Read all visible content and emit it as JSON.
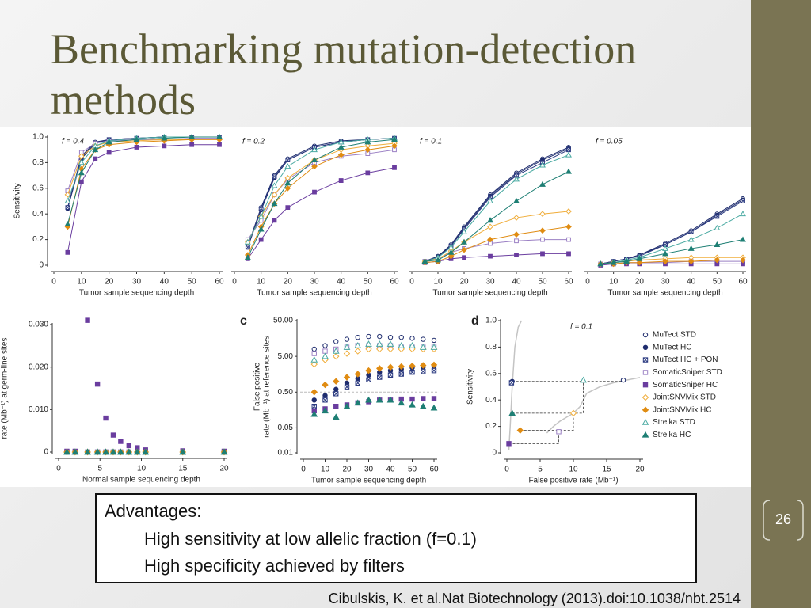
{
  "slide": {
    "title": "Benchmarking mutation-detection methods",
    "textbox": {
      "heading": "Advantages:",
      "lines": [
        "High sensitivity at low allelic fraction (f=0.1)",
        "High specificity achieved by filters"
      ]
    },
    "citation": "Cibulskis, K. et al.Nat Biotechnology (2013).doi:10.1038/nbt.2514",
    "page_number": 26
  },
  "series_styles": [
    {
      "name": "MuTect STD",
      "color": "#1f2d6e",
      "marker": "circle",
      "filled": false
    },
    {
      "name": "MuTect HC",
      "color": "#1f2d6e",
      "marker": "circle",
      "filled": true
    },
    {
      "name": "MuTect HC + PON",
      "color": "#2b3a80",
      "marker": "xsquare",
      "filled": false
    },
    {
      "name": "SomaticSniper STD",
      "color": "#9b80c4",
      "marker": "square",
      "filled": false
    },
    {
      "name": "SomaticSniper HC",
      "color": "#6a3d9f",
      "marker": "square",
      "filled": true
    },
    {
      "name": "JointSNVMix STD",
      "color": "#f0ad3a",
      "marker": "diamond",
      "filled": false
    },
    {
      "name": "JointSNVMix HC",
      "color": "#e08c12",
      "marker": "diamond",
      "filled": true
    },
    {
      "name": "Strelka STD",
      "color": "#4aaaa2",
      "marker": "triangle",
      "filled": false
    },
    {
      "name": "Strelka HC",
      "color": "#1e7f74",
      "marker": "triangle",
      "filled": true
    }
  ],
  "chart_data": [
    {
      "type": "line",
      "annotation": "f = 0.4",
      "xlabel": "Tumor sample sequencing depth",
      "ylabel": "Sensitivity",
      "x": [
        5,
        10,
        15,
        20,
        30,
        40,
        50,
        60
      ],
      "xlim": [
        0,
        60
      ],
      "ylim": [
        0,
        1
      ],
      "xticks": [
        0,
        10,
        20,
        30,
        40,
        50,
        60
      ],
      "yticks": [
        0,
        0.2,
        0.4,
        0.6,
        0.8,
        {
          "value": 1,
          "label": "1.0"
        }
      ],
      "series": [
        {
          "values": [
            0.45,
            0.85,
            0.96,
            0.98,
            0.99,
            1,
            1,
            1
          ]
        },
        {
          "values": [
            0.44,
            0.83,
            0.95,
            0.98,
            0.99,
            1,
            1,
            1
          ]
        },
        {
          "values": [
            0.45,
            0.84,
            0.95,
            0.98,
            0.99,
            1,
            1,
            1
          ]
        },
        {
          "values": [
            0.58,
            0.88,
            0.95,
            0.97,
            0.98,
            0.98,
            0.99,
            0.99
          ]
        },
        {
          "values": [
            0.1,
            0.65,
            0.83,
            0.88,
            0.92,
            0.93,
            0.94,
            0.94
          ]
        },
        {
          "values": [
            0.55,
            0.85,
            0.93,
            0.96,
            0.97,
            0.98,
            0.98,
            0.98
          ]
        },
        {
          "values": [
            0.3,
            0.75,
            0.9,
            0.94,
            0.96,
            0.97,
            0.98,
            0.98
          ]
        },
        {
          "values": [
            0.5,
            0.8,
            0.93,
            0.97,
            0.99,
            1,
            1,
            1
          ]
        },
        {
          "values": [
            0.32,
            0.72,
            0.9,
            0.96,
            0.98,
            0.99,
            1,
            1
          ]
        }
      ]
    },
    {
      "type": "line",
      "annotation": "f = 0.2",
      "xlabel": "Tumor sample sequencing depth",
      "x": [
        5,
        10,
        15,
        20,
        30,
        40,
        50,
        60
      ],
      "xlim": [
        0,
        60
      ],
      "ylim": [
        0,
        1
      ],
      "xticks": [
        0,
        10,
        20,
        30,
        40,
        50,
        60
      ],
      "series": [
        {
          "values": [
            0.15,
            0.45,
            0.7,
            0.83,
            0.93,
            0.97,
            0.98,
            0.99
          ]
        },
        {
          "values": [
            0.14,
            0.43,
            0.68,
            0.82,
            0.92,
            0.96,
            0.98,
            0.99
          ]
        },
        {
          "values": [
            0.14,
            0.44,
            0.69,
            0.82,
            0.92,
            0.96,
            0.98,
            0.99
          ]
        },
        {
          "values": [
            0.2,
            0.35,
            0.55,
            0.67,
            0.8,
            0.85,
            0.87,
            0.9
          ]
        },
        {
          "values": [
            0.05,
            0.2,
            0.35,
            0.45,
            0.57,
            0.66,
            0.72,
            0.76
          ]
        },
        {
          "values": [
            0.18,
            0.38,
            0.55,
            0.68,
            0.82,
            0.9,
            0.93,
            0.95
          ]
        },
        {
          "values": [
            0.08,
            0.3,
            0.48,
            0.6,
            0.77,
            0.86,
            0.9,
            0.93
          ]
        },
        {
          "values": [
            0.18,
            0.38,
            0.62,
            0.77,
            0.9,
            0.96,
            0.98,
            0.99
          ]
        },
        {
          "values": [
            0.06,
            0.28,
            0.48,
            0.64,
            0.82,
            0.92,
            0.96,
            0.98
          ]
        }
      ]
    },
    {
      "type": "line",
      "annotation": "f = 0.1",
      "xlabel": "Tumor sample sequencing depth",
      "x": [
        5,
        10,
        15,
        20,
        30,
        40,
        50,
        60
      ],
      "xlim": [
        0,
        60
      ],
      "ylim": [
        0,
        1
      ],
      "xticks": [
        0,
        10,
        20,
        30,
        40,
        50,
        60
      ],
      "series": [
        {
          "values": [
            0.03,
            0.07,
            0.16,
            0.3,
            0.55,
            0.72,
            0.83,
            0.92
          ]
        },
        {
          "values": [
            0.03,
            0.07,
            0.15,
            0.29,
            0.54,
            0.71,
            0.82,
            0.91
          ]
        },
        {
          "values": [
            0.03,
            0.06,
            0.15,
            0.28,
            0.53,
            0.7,
            0.8,
            0.9
          ]
        },
        {
          "values": [
            0.03,
            0.05,
            0.1,
            0.13,
            0.17,
            0.19,
            0.2,
            0.2
          ]
        },
        {
          "values": [
            0.02,
            0.03,
            0.05,
            0.06,
            0.07,
            0.08,
            0.09,
            0.09
          ]
        },
        {
          "values": [
            0.03,
            0.05,
            0.11,
            0.18,
            0.3,
            0.37,
            0.4,
            0.42
          ]
        },
        {
          "values": [
            0.02,
            0.03,
            0.07,
            0.12,
            0.2,
            0.24,
            0.27,
            0.3
          ]
        },
        {
          "values": [
            0.03,
            0.06,
            0.14,
            0.26,
            0.5,
            0.67,
            0.78,
            0.86
          ]
        },
        {
          "values": [
            0.03,
            0.04,
            0.1,
            0.18,
            0.35,
            0.5,
            0.63,
            0.73
          ]
        }
      ]
    },
    {
      "type": "line",
      "annotation": "f = 0.05",
      "xlabel": "Tumor sample sequencing depth",
      "x": [
        5,
        10,
        15,
        20,
        30,
        40,
        50,
        60
      ],
      "xlim": [
        0,
        60
      ],
      "ylim": [
        0,
        1
      ],
      "xticks": [
        0,
        10,
        20,
        30,
        40,
        50,
        60
      ],
      "series": [
        {
          "values": [
            0.01,
            0.03,
            0.05,
            0.08,
            0.17,
            0.27,
            0.4,
            0.52
          ]
        },
        {
          "values": [
            0.01,
            0.03,
            0.05,
            0.08,
            0.16,
            0.26,
            0.39,
            0.51
          ]
        },
        {
          "values": [
            0.01,
            0.03,
            0.05,
            0.07,
            0.16,
            0.26,
            0.38,
            0.5
          ]
        },
        {
          "values": [
            0.01,
            0.01,
            0.02,
            0.02,
            0.02,
            0.03,
            0.03,
            0.03
          ]
        },
        {
          "values": [
            0,
            0.01,
            0.01,
            0.01,
            0.01,
            0.01,
            0.01,
            0.01
          ]
        },
        {
          "values": [
            0.01,
            0.02,
            0.03,
            0.04,
            0.05,
            0.06,
            0.06,
            0.06
          ]
        },
        {
          "values": [
            0.01,
            0.01,
            0.02,
            0.02,
            0.03,
            0.03,
            0.04,
            0.04
          ]
        },
        {
          "values": [
            0.01,
            0.02,
            0.04,
            0.06,
            0.13,
            0.2,
            0.29,
            0.4
          ]
        },
        {
          "values": [
            0.01,
            0.02,
            0.03,
            0.05,
            0.09,
            0.13,
            0.16,
            0.2
          ]
        }
      ]
    },
    {
      "type": "scatter",
      "xlabel": "Normal sample sequencing depth",
      "ylabel": [
        "rate (Mb⁻¹) at germ-line sites"
      ],
      "x": [
        1,
        2,
        3.5,
        4.7,
        5.7,
        6.6,
        7.5,
        8.5,
        9.5,
        10.5,
        15,
        20
      ],
      "xlim": [
        0,
        20
      ],
      "ylim": [
        0,
        0.03
      ],
      "xticks": [
        0,
        5,
        10,
        15,
        20
      ],
      "yticks": [
        0,
        {
          "value": 0.01,
          "label": "0.010"
        },
        {
          "value": 0.02,
          "label": "0.020"
        },
        {
          "value": 0.03,
          "label": "0.030"
        }
      ],
      "series": [
        {
          "values": [
            0,
            0,
            0,
            0,
            0,
            0,
            0,
            0,
            0,
            0,
            0,
            0
          ]
        },
        {
          "values": [
            0,
            0,
            0,
            0,
            0,
            0,
            0,
            0,
            0,
            0,
            0,
            0
          ]
        },
        {
          "values": [
            0,
            0,
            0,
            0,
            0,
            0,
            0,
            0,
            0,
            0,
            0,
            0
          ]
        },
        {
          "values": [
            0,
            0,
            0,
            0,
            0,
            0,
            0,
            0,
            0,
            0,
            0,
            0
          ]
        },
        {
          "values": [
            0.0002,
            0.0002,
            0.031,
            0.016,
            0.008,
            0.004,
            0.0025,
            0.0015,
            0.001,
            0.0005,
            0.0003,
            0.0002
          ]
        },
        {
          "values": [
            0,
            0,
            0,
            0,
            0,
            0,
            0,
            0,
            0,
            0,
            0,
            0
          ]
        },
        {
          "values": [
            0,
            0,
            0,
            0,
            0,
            0,
            0,
            0,
            0,
            0,
            0,
            0
          ]
        },
        {
          "values": [
            0,
            0,
            0,
            0,
            0,
            0,
            0,
            0,
            0,
            0,
            0,
            0
          ]
        },
        {
          "values": [
            0,
            0,
            0,
            0,
            0,
            0,
            0,
            0,
            0,
            0,
            0,
            0
          ]
        }
      ]
    },
    {
      "type": "scatter",
      "panel_label": "c",
      "xlabel": "Tumor sample sequencing depth",
      "ylabel": [
        "False positive",
        "rate (Mb⁻¹) at reference sites"
      ],
      "log_y": true,
      "hline": 0.5,
      "x": [
        5,
        10,
        15,
        20,
        25,
        30,
        35,
        40,
        45,
        50,
        55,
        60
      ],
      "xlim": [
        0,
        60
      ],
      "ylim": [
        0.01,
        50
      ],
      "xticks": [
        0,
        10,
        20,
        30,
        40,
        50,
        60
      ],
      "yticks": [
        0.01,
        0.05,
        {
          "value": 0.5,
          "label": "0.50"
        },
        {
          "value": 5,
          "label": "5.00"
        },
        {
          "value": 50,
          "label": "50.00"
        }
      ],
      "series": [
        {
          "values": [
            8,
            10,
            13,
            15,
            17,
            18,
            18,
            17,
            17,
            16,
            15,
            14
          ]
        },
        {
          "values": [
            0.3,
            0.4,
            0.6,
            0.9,
            1.2,
            1.5,
            1.8,
            2,
            2.2,
            2.4,
            2.5,
            2.6
          ]
        },
        {
          "values": [
            0.2,
            0.3,
            0.45,
            0.7,
            0.9,
            1.1,
            1.3,
            1.5,
            1.6,
            1.8,
            1.9,
            2
          ]
        },
        {
          "values": [
            6,
            7,
            8,
            9,
            10,
            10,
            10,
            10,
            9,
            9,
            9,
            9
          ]
        },
        {
          "values": [
            0.15,
            0.17,
            0.2,
            0.22,
            0.25,
            0.27,
            0.3,
            0.3,
            0.32,
            0.32,
            0.33,
            0.33
          ]
        },
        {
          "values": [
            3,
            4,
            5,
            6,
            7,
            8,
            8,
            8,
            8,
            8,
            8,
            8
          ]
        },
        {
          "values": [
            0.5,
            0.8,
            1,
            1.3,
            1.6,
            2,
            2.3,
            2.5,
            2.6,
            2.7,
            2.8,
            2.9
          ]
        },
        {
          "values": [
            4,
            5,
            7,
            9,
            10,
            11,
            11,
            11,
            10,
            10,
            9,
            9
          ]
        },
        {
          "values": [
            0.12,
            0.15,
            0.1,
            0.2,
            0.25,
            0.3,
            0.3,
            0.3,
            0.25,
            0.22,
            0.2,
            0.18
          ]
        }
      ]
    },
    {
      "type": "scatter",
      "panel_label": "d",
      "annotation": "f = 0.1",
      "xlabel": "False positive rate (Mb⁻¹)",
      "ylabel": [
        "Sensitivity"
      ],
      "xlim": [
        0,
        20
      ],
      "ylim": [
        0,
        1
      ],
      "xticks": [
        0,
        5,
        10,
        15,
        20
      ],
      "yticks": [
        0,
        0.2,
        0.4,
        0.6,
        0.8,
        {
          "value": 1,
          "label": "1.0"
        }
      ],
      "curve_color": "#c4c4c4",
      "curves": [
        {
          "x": [
            0.3,
            0.5,
            0.8,
            1.2,
            1.7,
            2.2
          ],
          "values": [
            0.02,
            0.2,
            0.5,
            0.8,
            0.95,
            1
          ]
        },
        {
          "x": [
            6,
            7,
            8,
            9,
            10,
            11,
            12,
            14,
            16,
            18,
            20
          ],
          "values": [
            0.15,
            0.2,
            0.24,
            0.27,
            0.3,
            0.35,
            0.45,
            0.5,
            0.53,
            0.55,
            0.57
          ]
        }
      ],
      "series": [
        {
          "x": [
            17.5
          ],
          "values": [
            0.55
          ]
        },
        {
          "x": [
            0.8
          ],
          "values": [
            0.54
          ]
        },
        {
          "x": [
            0.7
          ],
          "values": [
            0.53
          ]
        },
        {
          "x": [
            7.8
          ],
          "values": [
            0.16
          ]
        },
        {
          "x": [
            0.3
          ],
          "values": [
            0.07
          ]
        },
        {
          "x": [
            10
          ],
          "values": [
            0.3
          ]
        },
        {
          "x": [
            2
          ],
          "values": [
            0.17
          ]
        },
        {
          "x": [
            11.5
          ],
          "values": [
            0.55
          ]
        },
        {
          "x": [
            0.8
          ],
          "values": [
            0.3
          ]
        }
      ]
    }
  ]
}
